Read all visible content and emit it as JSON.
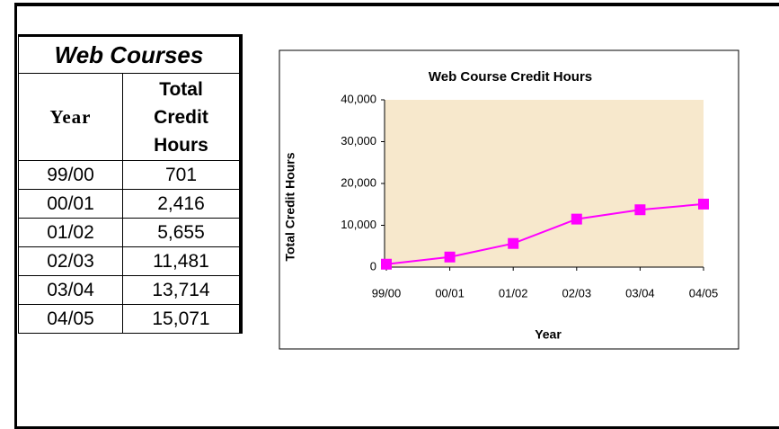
{
  "table": {
    "title": "Web Courses",
    "header": [
      "Year",
      "Total Credit Hours"
    ],
    "rows": [
      [
        "99/00",
        "701"
      ],
      [
        "00/01",
        "2,416"
      ],
      [
        "01/02",
        "5,655"
      ],
      [
        "02/03",
        "11,481"
      ],
      [
        "03/04",
        "13,714"
      ],
      [
        "04/05",
        "15,071"
      ]
    ]
  },
  "chart_data": {
    "type": "line",
    "title": "Web Course Credit Hours",
    "x_label": "Year",
    "y_label": "Total Credit Hours",
    "categories": [
      "99/00",
      "00/01",
      "01/02",
      "02/03",
      "03/04",
      "04/05"
    ],
    "series": [
      {
        "name": "Total Credit Hours",
        "color": "#ff00ff",
        "values": [
          701,
          2416,
          5655,
          11481,
          13714,
          15071
        ]
      }
    ],
    "ylim": [
      0,
      40000
    ],
    "yticks": [
      0,
      {
        "value": 10000,
        "label": "10,000"
      },
      {
        "value": 20000,
        "label": "20,000"
      },
      {
        "value": 30000,
        "label": "30,000"
      },
      {
        "value": 40000,
        "label": "40,000"
      }
    ]
  }
}
